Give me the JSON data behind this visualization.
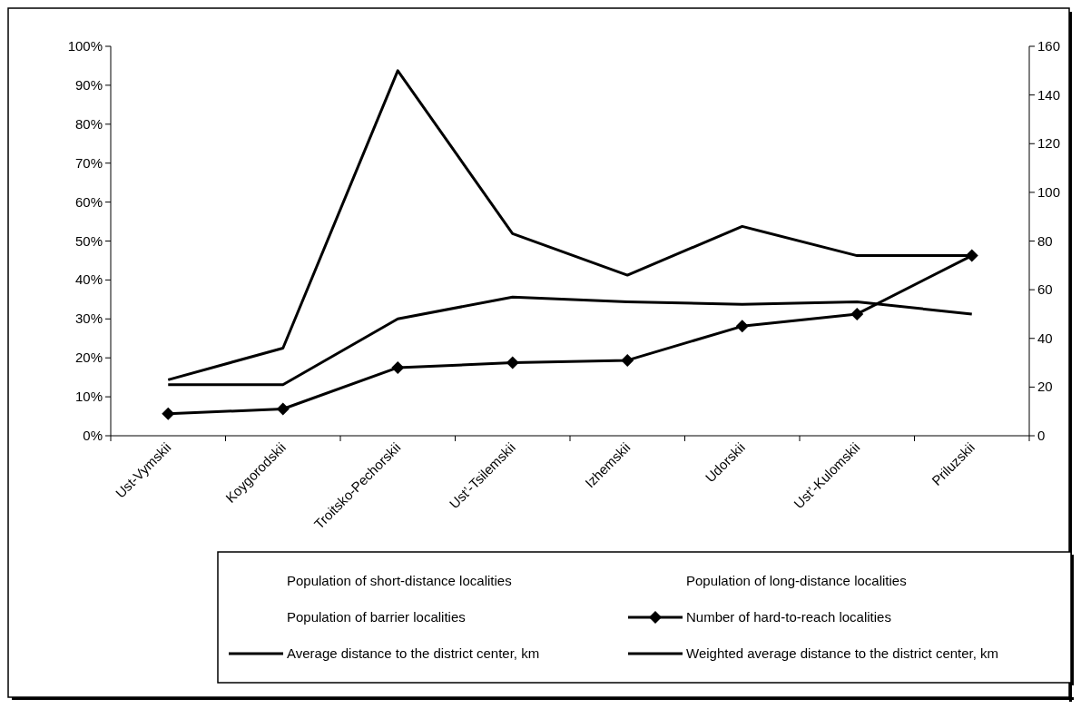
{
  "chart_data": {
    "type": "line",
    "categories": [
      "Ust-Vymskii",
      "Koygorodskii",
      "Troitsko-Pechorskii",
      "Ust’-Tsilemskii",
      "Izhemskii",
      "Udorskii",
      "Ust’-Kulomskii",
      "Priluzskii"
    ],
    "ylim": [
      0,
      1
    ],
    "yticks": [
      {
        "value": 0,
        "label": "0%"
      },
      {
        "value": 0.1,
        "label": "10%"
      },
      {
        "value": 0.2,
        "label": "20%"
      },
      {
        "value": 0.3,
        "label": "30%"
      },
      {
        "value": 0.4,
        "label": "40%"
      },
      {
        "value": 0.5,
        "label": "50%"
      },
      {
        "value": 0.6,
        "label": "60%"
      },
      {
        "value": 0.7,
        "label": "70%"
      },
      {
        "value": 0.8,
        "label": "80%"
      },
      {
        "value": 0.9,
        "label": "90%"
      },
      {
        "value": 1,
        "label": "100%"
      }
    ],
    "y2lim": [
      0,
      160
    ],
    "y2ticks": [
      0,
      20,
      40,
      60,
      80,
      100,
      120,
      140,
      160
    ],
    "legend": "bottom",
    "series": [
      {
        "name": "Population of short-distance localities",
        "values": [
          null,
          null,
          null,
          null,
          null,
          null,
          null,
          null
        ]
      },
      {
        "name": "Population of long-distance localities",
        "values": [
          null,
          null,
          null,
          null,
          null,
          null,
          null,
          null
        ]
      },
      {
        "name": "Population of barrier localities",
        "values": [
          null,
          null,
          null,
          null,
          null,
          null,
          null,
          null
        ]
      },
      {
        "name": "Number of hard-to-reach localities",
        "axis": "y2",
        "marker": "diamond",
        "color": "#000000",
        "values": [
          9,
          11,
          28,
          30,
          31,
          45,
          50,
          74
        ]
      },
      {
        "name": "Average distance to the district center, km",
        "axis": "y2",
        "marker": "none",
        "color": "#000000",
        "values": [
          23,
          36,
          150,
          83,
          66,
          86,
          74,
          74
        ]
      },
      {
        "name": "Weighted average distance to the district center, km",
        "axis": "y2",
        "marker": "none",
        "color": "#000000",
        "values": [
          21,
          21,
          48,
          57,
          55,
          54,
          55,
          50
        ]
      }
    ]
  }
}
